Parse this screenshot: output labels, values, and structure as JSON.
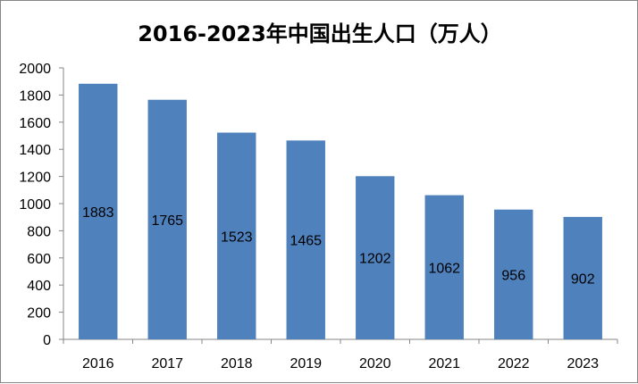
{
  "chart_data": {
    "type": "bar",
    "title": "2016-2023年中国出生人口（万人）",
    "categories": [
      "2016",
      "2017",
      "2018",
      "2019",
      "2020",
      "2021",
      "2022",
      "2023"
    ],
    "values": [
      1883,
      1765,
      1523,
      1465,
      1202,
      1062,
      956,
      902
    ],
    "data_labels": [
      "1883",
      "1765",
      "1523",
      "1465",
      "1202",
      "1062",
      "956",
      "902"
    ],
    "ylim": [
      0,
      2000
    ],
    "yticks": [
      "0",
      "200",
      "400",
      "600",
      "800",
      "1000",
      "1200",
      "1400",
      "1600",
      "1800",
      "2000"
    ],
    "xlabel": "",
    "ylabel": "",
    "grid": false,
    "legend": "none",
    "bar_color": "#4F81BD"
  }
}
